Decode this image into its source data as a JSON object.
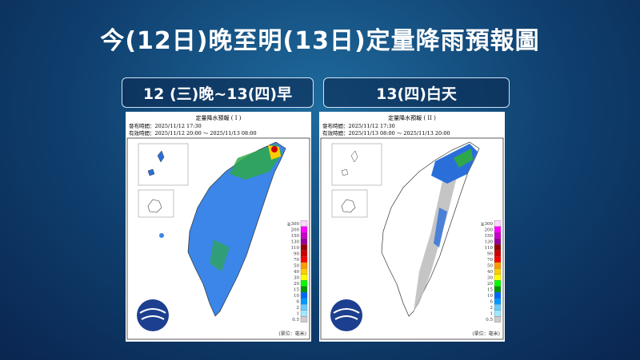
{
  "title": "今(12日)晚至明(13日)定量降雨預報圖",
  "panels": [
    {
      "label": "12 (三)晚~13(四)早",
      "map_title": "定量降水預報 ( I )",
      "issued": "發布時間：2025/11/12 17:30",
      "valid": "有效時間：2025/11/12 20:00 ～ 2025/11/13 08:00"
    },
    {
      "label": "13(四)白天",
      "map_title": "定量降水預報 ( II )",
      "issued": "發布時間：2025/11/12 17:30",
      "valid": "有效時間：2025/11/13 08:00 ～ 2025/11/13 20:00"
    }
  ],
  "legend": [
    "≧300",
    "200",
    "150",
    "130",
    "110",
    "90",
    "70",
    "50",
    "40",
    "30",
    "20",
    "15",
    "10",
    "6",
    "2",
    "1",
    "0.5"
  ],
  "unit": "(單位：毫米)"
}
